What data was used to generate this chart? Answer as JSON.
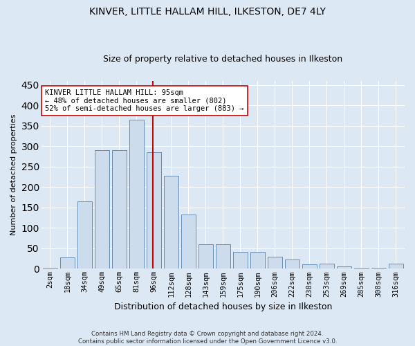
{
  "title": "KINVER, LITTLE HALLAM HILL, ILKESTON, DE7 4LY",
  "subtitle": "Size of property relative to detached houses in Ilkeston",
  "xlabel": "Distribution of detached houses by size in Ilkeston",
  "ylabel": "Number of detached properties",
  "footer_line1": "Contains HM Land Registry data © Crown copyright and database right 2024.",
  "footer_line2": "Contains public sector information licensed under the Open Government Licence v3.0.",
  "bar_labels": [
    "2sqm",
    "18sqm",
    "34sqm",
    "49sqm",
    "65sqm",
    "81sqm",
    "96sqm",
    "112sqm",
    "128sqm",
    "143sqm",
    "159sqm",
    "175sqm",
    "190sqm",
    "206sqm",
    "222sqm",
    "238sqm",
    "253sqm",
    "269sqm",
    "285sqm",
    "300sqm",
    "316sqm"
  ],
  "bar_values": [
    2,
    28,
    165,
    290,
    290,
    365,
    285,
    228,
    133,
    60,
    60,
    41,
    41,
    30,
    22,
    11,
    13,
    5,
    2,
    2,
    13
  ],
  "bar_color": "#ccdcec",
  "bar_edge_color": "#5580aa",
  "vline_index": 6,
  "annotation_title": "KINVER LITTLE HALLAM HILL: 95sqm",
  "annotation_line2": "← 48% of detached houses are smaller (802)",
  "annotation_line3": "52% of semi-detached houses are larger (883) →",
  "vline_color": "#cc0000",
  "ylim": [
    0,
    460
  ],
  "yticks": [
    0,
    50,
    100,
    150,
    200,
    250,
    300,
    350,
    400,
    450
  ],
  "background_color": "#dce8f4",
  "plot_bg_color": "#dce8f4",
  "grid_color": "#ffffff",
  "title_fontsize": 10,
  "subtitle_fontsize": 9,
  "xlabel_fontsize": 9,
  "ylabel_fontsize": 8,
  "tick_fontsize": 7.5,
  "annot_fontsize": 7.5
}
